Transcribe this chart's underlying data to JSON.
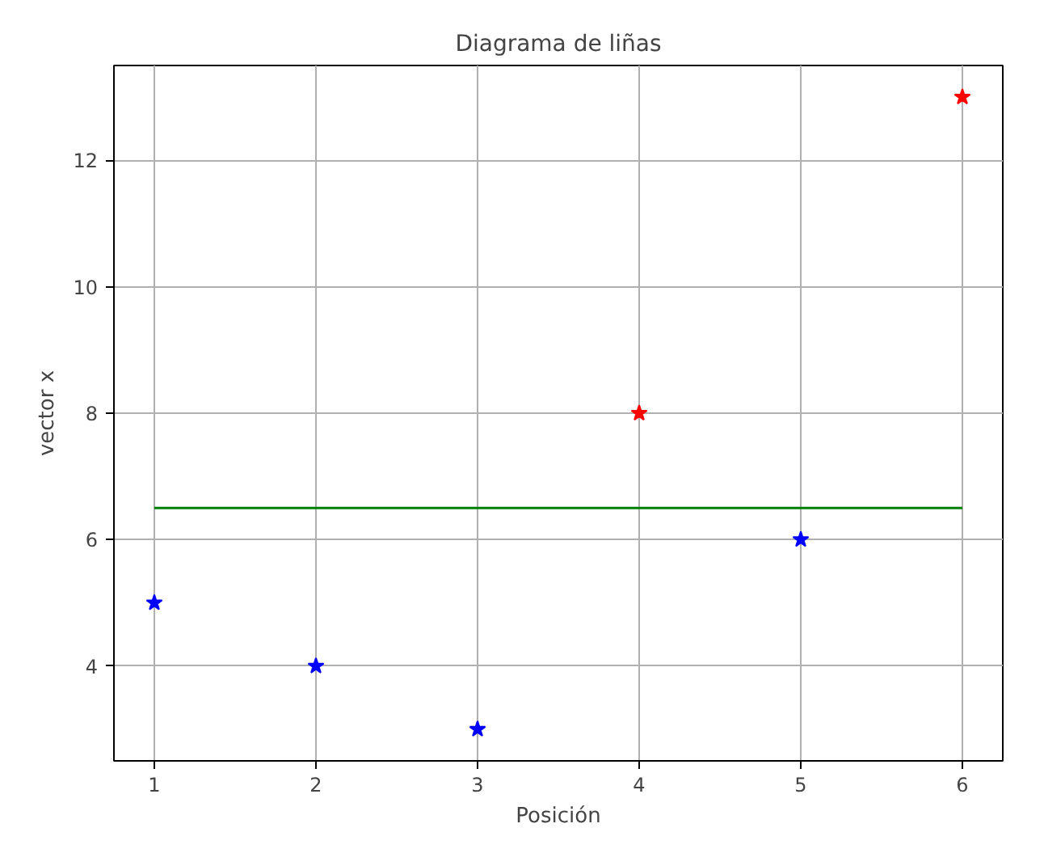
{
  "chart_data": {
    "type": "scatter",
    "title": "Diagrama de liñas",
    "xlabel": "Posición",
    "ylabel": "vector x",
    "series": [
      {
        "color": "#0000ff",
        "marker": "star",
        "x": [
          1,
          2,
          3,
          5
        ],
        "values": [
          5,
          4,
          3,
          6
        ]
      },
      {
        "color": "#ff0000",
        "marker": "star",
        "x": [
          4,
          6
        ],
        "values": [
          8,
          13
        ]
      },
      {
        "type": "line",
        "color": "#008000",
        "marker": "none",
        "x": [
          1,
          6
        ],
        "values": [
          6.5,
          6.5
        ]
      }
    ],
    "xlim": [
      0.75,
      6.25
    ],
    "ylim": [
      2.5,
      13.5
    ],
    "xticks": [
      1,
      2,
      3,
      4,
      5,
      6
    ],
    "yticks": [
      4,
      6,
      8,
      10,
      12
    ],
    "grid": true
  }
}
